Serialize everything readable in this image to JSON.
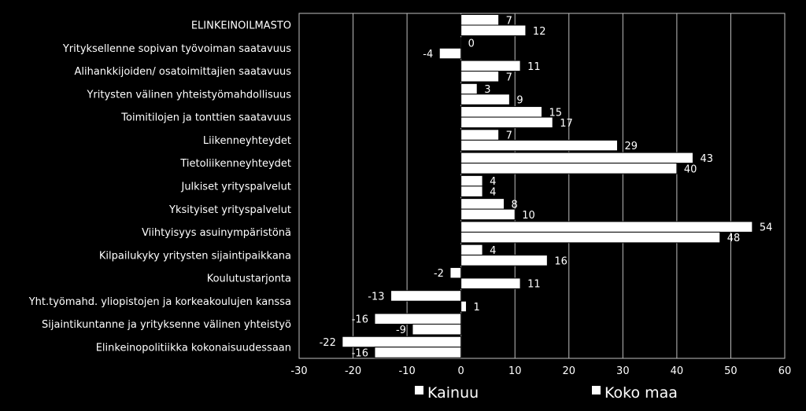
{
  "chart_data": {
    "type": "bar",
    "orientation": "horizontal",
    "categories": [
      "ELINKEINOILMASTO",
      "Yrityksellenne sopivan työvoiman saatavuus",
      "Alihankkijoiden/ osatoimittajien saatavuus",
      "Yritysten välinen yhteistyömahdollisuus",
      "Toimitilojen ja tonttien saatavuus",
      "Liikenneyhteydet",
      "Tietoliikenneyhteydet",
      "Julkiset yrityspalvelut",
      "Yksityiset yrityspalvelut",
      "Viihtyisyys asuinympäristönä",
      "Kilpailukyky yritysten sijaintipaikkana",
      "Koulutustarjonta",
      "Yht.työmahd. yliopistojen ja korkeakoulujen kanssa",
      "Sijaintikuntanne ja yrityksenne välinen yhteistyö",
      "Elinkeinopolitiikka kokonaisuudessaan"
    ],
    "series": [
      {
        "name": "Kainuu",
        "values": [
          7,
          0,
          11,
          3,
          15,
          7,
          43,
          4,
          8,
          54,
          4,
          -2,
          -13,
          -16,
          -22
        ]
      },
      {
        "name": "Koko maa",
        "values": [
          12,
          -4,
          7,
          9,
          17,
          29,
          40,
          4,
          10,
          48,
          16,
          11,
          1,
          -9,
          -16
        ]
      }
    ],
    "xlim": [
      -30,
      60
    ],
    "xticks": [
      -30,
      -20,
      -10,
      0,
      10,
      20,
      30,
      40,
      50,
      60
    ],
    "grid": true,
    "legend_position": "bottom",
    "colors": {
      "background": "#000000",
      "bar": "#ffffff",
      "text": "#ffffff",
      "grid": "#bfbfbf"
    }
  }
}
